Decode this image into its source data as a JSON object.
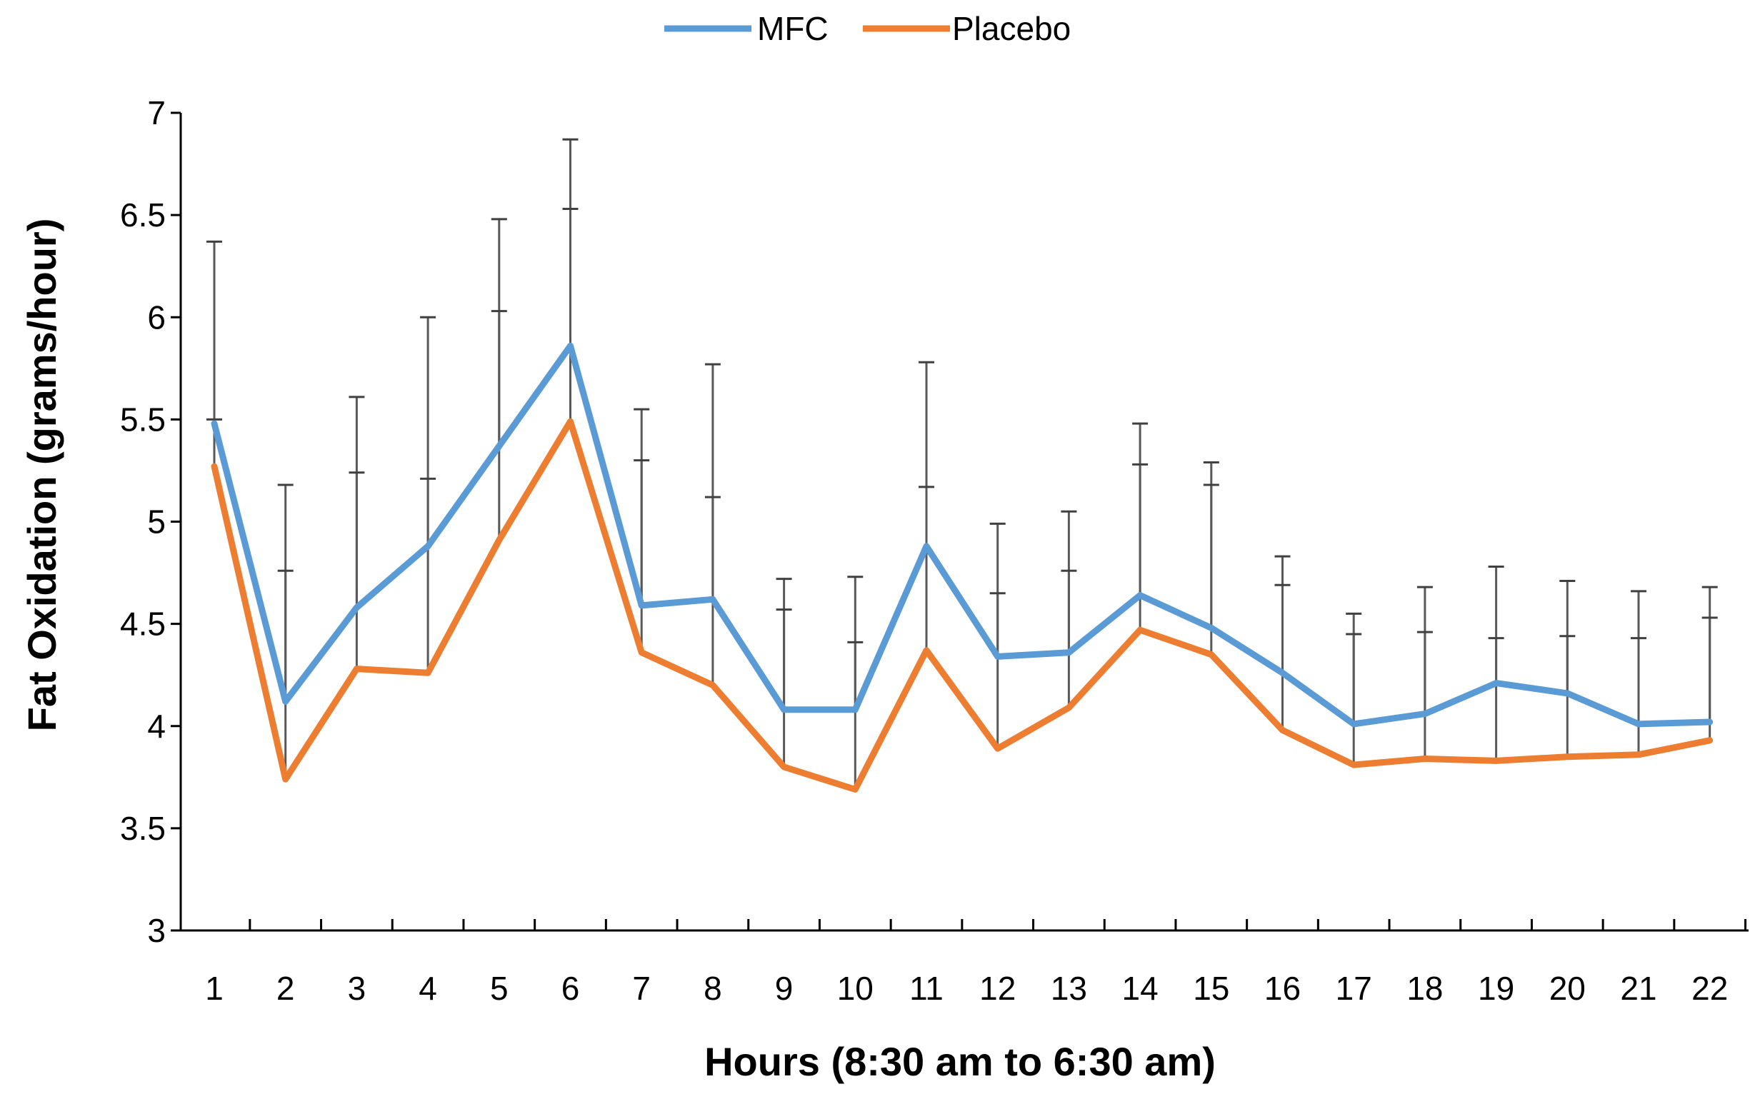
{
  "chart_data": {
    "type": "line",
    "title": "",
    "xlabel": "Hours (8:30 am to 6:30 am)",
    "ylabel": "Fat Oxidation (grams/hour)",
    "ylim": [
      3,
      7
    ],
    "y_ticks": [
      "3",
      "3.5",
      "4",
      "4.5",
      "5",
      "5.5",
      "6",
      "6.5",
      "7"
    ],
    "y_tick_values": [
      3,
      3.5,
      4,
      4.5,
      5,
      5.5,
      6,
      6.5,
      7
    ],
    "categories": [
      "1",
      "2",
      "3",
      "4",
      "5",
      "6",
      "7",
      "8",
      "9",
      "10",
      "11",
      "12",
      "13",
      "14",
      "15",
      "16",
      "17",
      "18",
      "19",
      "20",
      "21",
      "22"
    ],
    "legend_position": "top-center",
    "grid": false,
    "series": [
      {
        "name": "MFC",
        "color": "#5B9BD5",
        "values": [
          5.48,
          4.12,
          4.58,
          4.88,
          5.37,
          5.86,
          4.59,
          4.62,
          4.08,
          4.08,
          4.88,
          4.34,
          4.36,
          4.64,
          4.48,
          4.26,
          4.01,
          4.06,
          4.21,
          4.16,
          4.01,
          4.02
        ],
        "error_upper": [
          6.37,
          5.18,
          5.61,
          6.0,
          6.48,
          6.87,
          5.55,
          5.77,
          4.72,
          4.73,
          5.78,
          4.99,
          5.05,
          5.48,
          5.29,
          4.83,
          4.55,
          4.68,
          4.78,
          4.71,
          4.66,
          4.68
        ]
      },
      {
        "name": "Placebo",
        "color": "#ED7D31",
        "values": [
          5.27,
          3.74,
          4.28,
          4.26,
          4.91,
          5.49,
          4.36,
          4.2,
          3.8,
          3.69,
          4.37,
          3.89,
          4.09,
          4.47,
          4.35,
          3.98,
          3.81,
          3.84,
          3.83,
          3.85,
          3.86,
          3.93
        ],
        "error_upper": [
          5.5,
          4.76,
          5.24,
          5.21,
          6.03,
          6.53,
          5.3,
          5.12,
          4.57,
          4.41,
          5.17,
          4.65,
          4.76,
          5.28,
          5.18,
          4.69,
          4.45,
          4.46,
          4.43,
          4.44,
          4.43,
          4.53
        ]
      }
    ]
  }
}
